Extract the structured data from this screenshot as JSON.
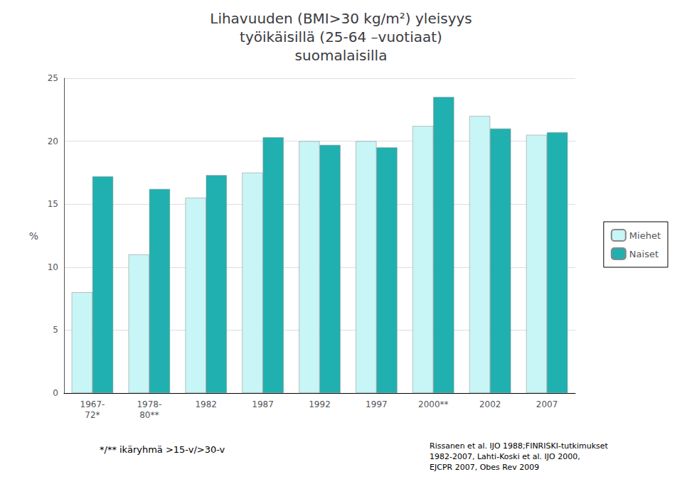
{
  "chart_data": {
    "type": "bar",
    "title": "Lihavuuden (BMI>30 kg/m²) yleisyys\ntyöikäisillä (25-64 –vuotiaat)\nsuomalaisilla",
    "ylabel": "%",
    "categories": [
      "1967-\n72*",
      "1978-\n80**",
      "1982",
      "1987",
      "1992",
      "1997",
      "2000**",
      "2002",
      "2007"
    ],
    "series": [
      {
        "name": "Miehet",
        "color": "#c8f5f5",
        "values": [
          8.0,
          11.0,
          15.5,
          17.5,
          20.0,
          20.0,
          21.2,
          22.0,
          20.5
        ]
      },
      {
        "name": "Naiset",
        "color": "#20b0b0",
        "values": [
          17.2,
          16.2,
          17.3,
          20.3,
          19.7,
          19.5,
          23.5,
          21.0,
          20.7
        ]
      }
    ],
    "ylim": [
      0,
      25
    ],
    "yticks": [
      0,
      5,
      10,
      15,
      20,
      25
    ],
    "grid": true,
    "legend": "right",
    "annotations": [
      "*/** ikäryhmä >15-v/>30-v",
      "Rissanen et al. IJO 1988;FINRISKI-tutkimukset\n1982-2007, Lahti-Koski et al. IJO 2000,\nEJCPR 2007, Obes Rev 2009"
    ]
  }
}
